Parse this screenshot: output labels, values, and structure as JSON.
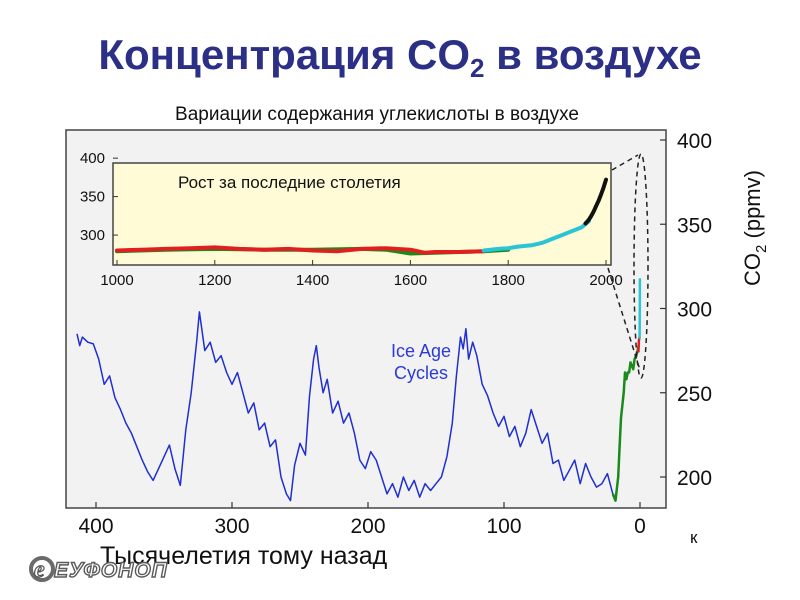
{
  "slide": {
    "title": "Концентрация CO",
    "title_subscript": "2",
    "title_suffix": " в воздухе",
    "logo_text": "ЕУФОНОП"
  },
  "chart_data": [
    {
      "type": "line",
      "title": "Вариации содержания углекислоты в воздухе",
      "xlabel": "Тысячелетия тому назад",
      "x_unit_suffix": "к",
      "ylabel": "CO",
      "ylabel_subscript": "2",
      "ylabel_suffix": " (ppmv)",
      "annotation": "Ice Age\nCycles",
      "xlim": [
        420,
        -5
      ],
      "ylim": [
        180,
        400
      ],
      "x_ticks": [
        400,
        300,
        200,
        100,
        0
      ],
      "y_ticks": [
        200,
        250,
        300,
        350,
        400
      ],
      "grid": false,
      "series": [
        {
          "color": "#1f2fd1",
          "points": [
            [
              414,
              285
            ],
            [
              412,
              278
            ],
            [
              410,
              283
            ],
            [
              406,
              280
            ],
            [
              402,
              279
            ],
            [
              398,
              270
            ],
            [
              394,
              255
            ],
            [
              390,
              260
            ],
            [
              386,
              247
            ],
            [
              382,
              240
            ],
            [
              378,
              232
            ],
            [
              374,
              226
            ],
            [
              370,
              218
            ],
            [
              366,
              210
            ],
            [
              362,
              203
            ],
            [
              358,
              198
            ],
            [
              354,
              205
            ],
            [
              350,
              212
            ],
            [
              346,
              219
            ],
            [
              342,
              205
            ],
            [
              338,
              195
            ],
            [
              334,
              228
            ],
            [
              330,
              250
            ],
            [
              326,
              280
            ],
            [
              324,
              298
            ],
            [
              320,
              275
            ],
            [
              316,
              280
            ],
            [
              312,
              268
            ],
            [
              308,
              272
            ],
            [
              304,
              262
            ],
            [
              300,
              255
            ],
            [
              296,
              262
            ],
            [
              292,
              250
            ],
            [
              288,
              238
            ],
            [
              284,
              244
            ],
            [
              280,
              228
            ],
            [
              276,
              232
            ],
            [
              272,
              218
            ],
            [
              268,
              222
            ],
            [
              264,
              200
            ],
            [
              260,
              190
            ],
            [
              257,
              186
            ],
            [
              254,
              207
            ],
            [
              250,
              220
            ],
            [
              246,
              213
            ],
            [
              243,
              248
            ],
            [
              240,
              270
            ],
            [
              238,
              278
            ],
            [
              236,
              265
            ],
            [
              233,
              250
            ],
            [
              230,
              258
            ],
            [
              226,
              238
            ],
            [
              222,
              245
            ],
            [
              218,
              232
            ],
            [
              214,
              238
            ],
            [
              210,
              226
            ],
            [
              206,
              210
            ],
            [
              202,
              205
            ],
            [
              198,
              215
            ],
            [
              194,
              210
            ],
            [
              190,
              200
            ],
            [
              186,
              190
            ],
            [
              182,
              196
            ],
            [
              178,
              188
            ],
            [
              174,
              200
            ],
            [
              170,
              192
            ],
            [
              166,
              198
            ],
            [
              162,
              188
            ],
            [
              158,
              196
            ],
            [
              154,
              192
            ],
            [
              150,
              196
            ],
            [
              146,
              200
            ],
            [
              142,
              212
            ],
            [
              138,
              232
            ],
            [
              135,
              260
            ],
            [
              132,
              283
            ],
            [
              130,
              276
            ],
            [
              128,
              288
            ],
            [
              126,
              270
            ],
            [
              123,
              280
            ],
            [
              120,
              272
            ],
            [
              116,
              255
            ],
            [
              112,
              248
            ],
            [
              108,
              238
            ],
            [
              104,
              230
            ],
            [
              100,
              236
            ],
            [
              96,
              224
            ],
            [
              92,
              230
            ],
            [
              88,
              218
            ],
            [
              84,
              226
            ],
            [
              80,
              240
            ],
            [
              76,
              230
            ],
            [
              72,
              220
            ],
            [
              68,
              226
            ],
            [
              64,
              208
            ],
            [
              60,
              210
            ],
            [
              56,
              198
            ],
            [
              52,
              204
            ],
            [
              48,
              210
            ],
            [
              44,
              196
            ],
            [
              40,
              208
            ],
            [
              36,
              200
            ],
            [
              32,
              194
            ],
            [
              28,
              196
            ],
            [
              24,
              202
            ],
            [
              20,
              190
            ]
          ]
        },
        {
          "color": "#1a8a1a",
          "points": [
            [
              20,
              190
            ],
            [
              18,
              186
            ],
            [
              16,
              200
            ],
            [
              15,
              218
            ],
            [
              14,
              235
            ],
            [
              12,
              250
            ],
            [
              11,
              262
            ],
            [
              10,
              258
            ],
            [
              9,
              262
            ],
            [
              8,
              262
            ],
            [
              7,
              268
            ],
            [
              6,
              266
            ],
            [
              5,
              264
            ],
            [
              4,
              270
            ],
            [
              3,
              272
            ],
            [
              2,
              274
            ],
            [
              1,
              278
            ]
          ]
        },
        {
          "color": "#e02020",
          "points": [
            [
              1.2,
              274
            ],
            [
              0.8,
              281
            ],
            [
              0.4,
              283
            ]
          ]
        },
        {
          "color": "#29c4d6",
          "points": [
            [
              0.3,
              282
            ],
            [
              0.15,
              300
            ],
            [
              0.05,
              318
            ]
          ]
        }
      ]
    },
    {
      "type": "line",
      "title": "Рост за последние столетия",
      "xlim": [
        1000,
        2000
      ],
      "ylim": [
        265,
        395
      ],
      "x_ticks": [
        1000,
        1200,
        1400,
        1600,
        1800,
        2000
      ],
      "y_ticks": [
        300,
        350,
        400
      ],
      "series": [
        {
          "color": "#1a8a1a",
          "points": [
            [
              1000,
              279
            ],
            [
              1100,
              281
            ],
            [
              1200,
              282
            ],
            [
              1300,
              281
            ],
            [
              1400,
              281
            ],
            [
              1500,
              282
            ],
            [
              1550,
              281
            ],
            [
              1600,
              276
            ],
            [
              1650,
              277
            ],
            [
              1700,
              278
            ],
            [
              1750,
              279
            ],
            [
              1800,
              281
            ]
          ]
        },
        {
          "color": "#e02020",
          "points": [
            [
              1000,
              280
            ],
            [
              1050,
              281
            ],
            [
              1100,
              282
            ],
            [
              1150,
              283
            ],
            [
              1200,
              284
            ],
            [
              1250,
              282
            ],
            [
              1300,
              281
            ],
            [
              1350,
              282
            ],
            [
              1400,
              280
            ],
            [
              1450,
              279
            ],
            [
              1500,
              282
            ],
            [
              1550,
              283
            ],
            [
              1600,
              281
            ],
            [
              1630,
              277
            ],
            [
              1650,
              278
            ],
            [
              1700,
              278
            ],
            [
              1750,
              279
            ]
          ]
        },
        {
          "color": "#29c4d6",
          "points": [
            [
              1750,
              280
            ],
            [
              1780,
              282
            ],
            [
              1800,
              283
            ],
            [
              1820,
              285
            ],
            [
              1850,
              287
            ],
            [
              1870,
              290
            ],
            [
              1890,
              295
            ],
            [
              1910,
              300
            ],
            [
              1930,
              305
            ],
            [
              1950,
              310
            ],
            [
              1965,
              318
            ]
          ]
        },
        {
          "color": "#111111",
          "points": [
            [
              1958,
              315
            ],
            [
              1965,
              320
            ],
            [
              1970,
              325
            ],
            [
              1975,
              331
            ],
            [
              1980,
              338
            ],
            [
              1985,
              345
            ],
            [
              1990,
              353
            ],
            [
              1995,
              362
            ],
            [
              2000,
              372
            ]
          ]
        }
      ]
    }
  ]
}
